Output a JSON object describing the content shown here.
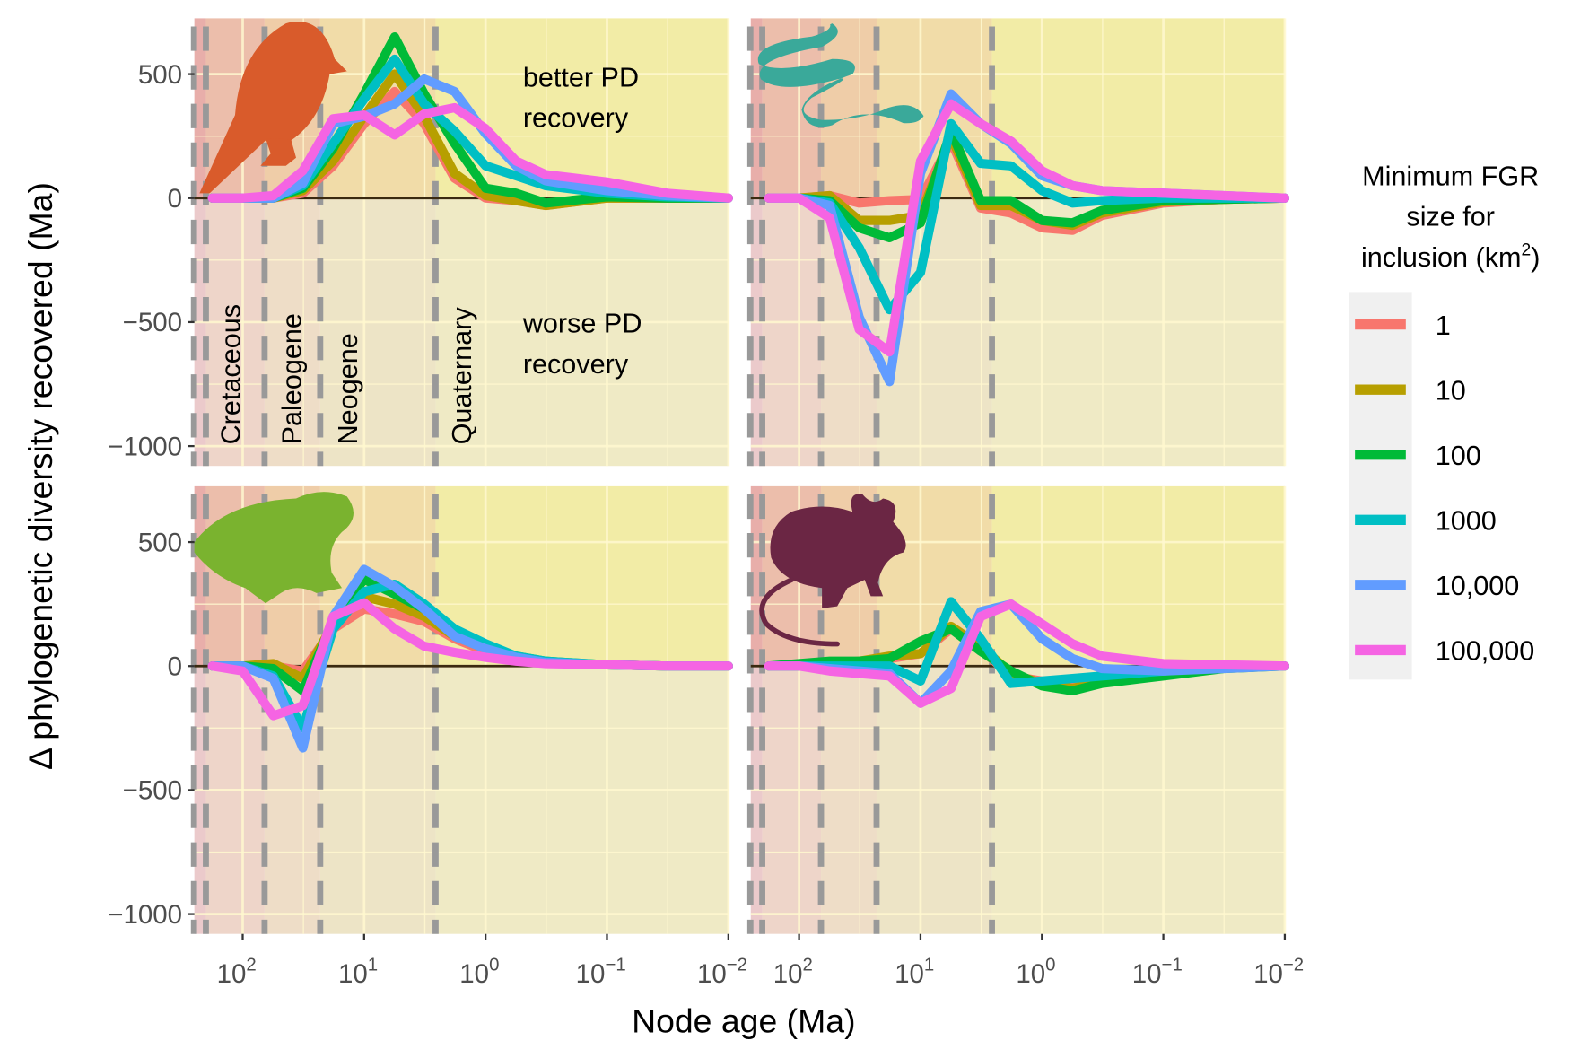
{
  "chart_data": [
    {
      "type": "line",
      "panel": "top-left",
      "icon": "bird-silhouette",
      "icon_color": "#d95b2b",
      "x": [
        178,
        100,
        56,
        32,
        18,
        10,
        5.6,
        3.2,
        1.8,
        1,
        0.56,
        0.32,
        0.1,
        0.032,
        0.01
      ],
      "series": [
        {
          "name": "1",
          "values": [
            0,
            0,
            0,
            20,
            130,
            300,
            430,
            300,
            80,
            0,
            -10,
            -30,
            0,
            0,
            0
          ]
        },
        {
          "name": "10",
          "values": [
            0,
            0,
            0,
            30,
            150,
            330,
            500,
            330,
            100,
            10,
            -10,
            -30,
            0,
            0,
            0
          ]
        },
        {
          "name": "100",
          "values": [
            0,
            0,
            0,
            40,
            200,
            420,
            650,
            420,
            220,
            40,
            20,
            -20,
            5,
            0,
            0
          ]
        },
        {
          "name": "1000",
          "values": [
            0,
            0,
            0,
            50,
            220,
            400,
            560,
            380,
            270,
            130,
            90,
            50,
            20,
            5,
            0
          ]
        },
        {
          "name": "10,000",
          "values": [
            0,
            0,
            0,
            60,
            300,
            330,
            380,
            480,
            430,
            260,
            130,
            70,
            30,
            10,
            0
          ]
        },
        {
          "name": "100,000",
          "values": [
            0,
            0,
            10,
            110,
            320,
            335,
            255,
            340,
            365,
            280,
            150,
            95,
            65,
            20,
            0
          ]
        }
      ],
      "annotations": [
        "better PD",
        "recovery",
        "worse PD",
        "recovery"
      ],
      "period_labels": [
        "Cretaceous",
        "Paleogene",
        "Neogene",
        "Quaternary"
      ]
    },
    {
      "type": "line",
      "panel": "top-right",
      "icon": "snake-silhouette",
      "icon_color": "#3aa99a",
      "x": [
        178,
        100,
        56,
        32,
        18,
        10,
        5.6,
        3.2,
        1.8,
        1,
        0.56,
        0.32,
        0.1,
        0.032,
        0.01
      ],
      "series": [
        {
          "name": "1",
          "values": [
            0,
            0,
            10,
            -20,
            -10,
            -5,
            230,
            -40,
            -60,
            -120,
            -130,
            -70,
            -20,
            -5,
            0
          ]
        },
        {
          "name": "10",
          "values": [
            0,
            0,
            10,
            -90,
            -90,
            -70,
            250,
            -30,
            -30,
            -90,
            -110,
            -60,
            -15,
            -5,
            0
          ]
        },
        {
          "name": "100",
          "values": [
            0,
            0,
            -10,
            -120,
            -160,
            -100,
            270,
            -10,
            -10,
            -90,
            -100,
            -50,
            -10,
            -5,
            0
          ]
        },
        {
          "name": "1000",
          "values": [
            0,
            0,
            -20,
            -200,
            -450,
            -300,
            300,
            140,
            130,
            30,
            -20,
            -10,
            0,
            0,
            0
          ]
        },
        {
          "name": "10,000",
          "values": [
            0,
            0,
            -30,
            -480,
            -740,
            100,
            420,
            300,
            220,
            90,
            50,
            30,
            20,
            10,
            0
          ]
        },
        {
          "name": "100,000",
          "values": [
            0,
            0,
            -80,
            -530,
            -620,
            150,
            380,
            300,
            230,
            110,
            50,
            30,
            20,
            10,
            0
          ]
        }
      ]
    },
    {
      "type": "line",
      "panel": "bottom-left",
      "icon": "frog-silhouette",
      "icon_color": "#7ab32f",
      "x": [
        178,
        100,
        56,
        32,
        18,
        10,
        5.6,
        3.2,
        1.8,
        1,
        0.56,
        0.32,
        0.1,
        0.032,
        0.01
      ],
      "series": [
        {
          "name": "1",
          "values": [
            0,
            0,
            0,
            -20,
            150,
            230,
            210,
            180,
            110,
            60,
            30,
            15,
            5,
            0,
            0
          ]
        },
        {
          "name": "10",
          "values": [
            0,
            0,
            10,
            -50,
            170,
            280,
            250,
            200,
            120,
            70,
            35,
            15,
            5,
            0,
            0
          ]
        },
        {
          "name": "100",
          "values": [
            0,
            0,
            -10,
            -100,
            180,
            350,
            290,
            230,
            130,
            80,
            40,
            20,
            5,
            0,
            0
          ]
        },
        {
          "name": "1000",
          "values": [
            0,
            0,
            -40,
            -250,
            150,
            300,
            330,
            250,
            150,
            90,
            40,
            20,
            5,
            0,
            0
          ]
        },
        {
          "name": "10,000",
          "values": [
            0,
            0,
            -50,
            -330,
            200,
            390,
            320,
            230,
            120,
            70,
            35,
            15,
            5,
            0,
            0
          ]
        },
        {
          "name": "100,000",
          "values": [
            0,
            -20,
            -200,
            -160,
            200,
            255,
            150,
            80,
            55,
            35,
            20,
            10,
            5,
            0,
            0
          ]
        }
      ]
    },
    {
      "type": "line",
      "panel": "bottom-right",
      "icon": "mouse-silhouette",
      "icon_color": "#6b2644",
      "x": [
        178,
        100,
        56,
        32,
        18,
        10,
        5.6,
        3.2,
        1.8,
        1,
        0.56,
        0.32,
        0.1,
        0.032,
        0.01
      ],
      "series": [
        {
          "name": "1",
          "values": [
            0,
            0,
            5,
            10,
            30,
            50,
            150,
            70,
            -40,
            -60,
            -80,
            -50,
            -20,
            0,
            0
          ]
        },
        {
          "name": "10",
          "values": [
            0,
            0,
            10,
            20,
            40,
            50,
            160,
            80,
            -30,
            -70,
            -90,
            -60,
            -20,
            0,
            0
          ]
        },
        {
          "name": "100",
          "values": [
            0,
            10,
            20,
            20,
            30,
            100,
            150,
            60,
            -20,
            -80,
            -100,
            -70,
            -40,
            -10,
            0
          ]
        },
        {
          "name": "1000",
          "values": [
            0,
            0,
            0,
            0,
            0,
            -60,
            260,
            110,
            -70,
            -60,
            -50,
            -40,
            -20,
            -5,
            0
          ]
        },
        {
          "name": "10,000",
          "values": [
            0,
            0,
            -10,
            -20,
            -30,
            -150,
            -20,
            220,
            250,
            110,
            30,
            -10,
            -20,
            -10,
            0
          ]
        },
        {
          "name": "100,000",
          "values": [
            0,
            0,
            -20,
            -30,
            -40,
            -150,
            -90,
            200,
            250,
            170,
            90,
            40,
            10,
            5,
            0
          ]
        }
      ]
    }
  ],
  "axes": {
    "xlabel": "Node age (Ma)",
    "ylabel": "Δ phylogenetic diversity recovered (Ma)",
    "x_scale": "log, reversed",
    "xlim": [
      250,
      0.01
    ],
    "ylim": [
      -1080,
      725
    ],
    "x_ticks": [
      {
        "base": "10",
        "exp": "2"
      },
      {
        "base": "10",
        "exp": "1"
      },
      {
        "base": "10",
        "exp": "0"
      },
      {
        "base": "10",
        "exp": "−1"
      },
      {
        "base": "10",
        "exp": "−2"
      }
    ],
    "y_ticks": [
      "500",
      "0",
      "−500",
      "−1000"
    ],
    "y_tick_values": [
      500,
      0,
      -500,
      -1000
    ],
    "grid": true,
    "period_boundaries_ma": [
      252,
      201,
      66,
      23,
      2.58
    ]
  },
  "legend": {
    "title_lines": [
      "Minimum FGR",
      "size for",
      "inclusion (km",
      "2",
      ")"
    ],
    "position": "right",
    "items": [
      {
        "label": "1",
        "color": "#f8766d"
      },
      {
        "label": "10",
        "color": "#b79f00"
      },
      {
        "label": "100",
        "color": "#00ba38"
      },
      {
        "label": "1000",
        "color": "#00bfc4"
      },
      {
        "label": "10,000",
        "color": "#619cff"
      },
      {
        "label": "100,000",
        "color": "#f564e3"
      }
    ]
  }
}
